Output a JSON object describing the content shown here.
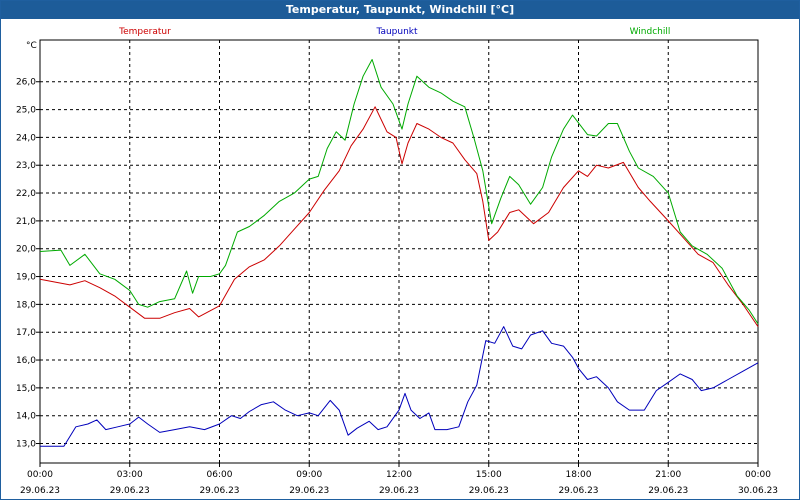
{
  "window": {
    "title": "Temperatur, Taupunkt, Windchill [°C]"
  },
  "chart_data": {
    "type": "line",
    "title": "Temperatur, Taupunkt, Windchill [°C]",
    "ylabel": "°C",
    "xlabel": "",
    "ylim": [
      12.3,
      27.5
    ],
    "yticks": [
      "13,0",
      "14,0",
      "15,0",
      "16,0",
      "17,0",
      "18,0",
      "19,0",
      "20,0",
      "21,0",
      "22,0",
      "23,0",
      "24,0",
      "25,0",
      "26,0"
    ],
    "xlim": [
      0,
      24
    ],
    "xticks": [
      {
        "time": "00:00",
        "date": "29.06.23"
      },
      {
        "time": "03:00",
        "date": "29.06.23"
      },
      {
        "time": "06:00",
        "date": "29.06.23"
      },
      {
        "time": "09:00",
        "date": "29.06.23"
      },
      {
        "time": "12:00",
        "date": "29.06.23"
      },
      {
        "time": "15:00",
        "date": "29.06.23"
      },
      {
        "time": "18:00",
        "date": "29.06.23"
      },
      {
        "time": "21:00",
        "date": "29.06.23"
      },
      {
        "time": "00:00",
        "date": "30.06.23"
      }
    ],
    "grid": true,
    "legend_position": "top",
    "series": [
      {
        "name": "Temperatur",
        "color": "#cc0000",
        "points": [
          [
            0,
            18.9
          ],
          [
            1,
            18.7
          ],
          [
            1.5,
            18.85
          ],
          [
            2,
            18.6
          ],
          [
            2.5,
            18.3
          ],
          [
            3,
            17.9
          ],
          [
            3.5,
            17.5
          ],
          [
            4,
            17.5
          ],
          [
            4.5,
            17.7
          ],
          [
            5,
            17.85
          ],
          [
            5.3,
            17.55
          ],
          [
            6,
            17.95
          ],
          [
            6.5,
            18.9
          ],
          [
            7,
            19.35
          ],
          [
            7.5,
            19.6
          ],
          [
            8,
            20.1
          ],
          [
            8.5,
            20.7
          ],
          [
            9,
            21.3
          ],
          [
            9.5,
            22.1
          ],
          [
            10,
            22.8
          ],
          [
            10.4,
            23.7
          ],
          [
            10.8,
            24.3
          ],
          [
            11.2,
            25.1
          ],
          [
            11.6,
            24.2
          ],
          [
            11.9,
            24.0
          ],
          [
            12.1,
            23.05
          ],
          [
            12.3,
            23.8
          ],
          [
            12.6,
            24.5
          ],
          [
            13,
            24.3
          ],
          [
            13.4,
            24.0
          ],
          [
            13.8,
            23.8
          ],
          [
            14.2,
            23.2
          ],
          [
            14.6,
            22.7
          ],
          [
            14.8,
            21.7
          ],
          [
            15,
            20.3
          ],
          [
            15.3,
            20.6
          ],
          [
            15.7,
            21.3
          ],
          [
            16,
            21.4
          ],
          [
            16.5,
            20.9
          ],
          [
            17,
            21.3
          ],
          [
            17.5,
            22.2
          ],
          [
            18,
            22.8
          ],
          [
            18.3,
            22.6
          ],
          [
            18.6,
            23.0
          ],
          [
            19,
            22.9
          ],
          [
            19.5,
            23.1
          ],
          [
            20,
            22.2
          ],
          [
            20.4,
            21.7
          ],
          [
            21,
            21.0
          ],
          [
            21.5,
            20.4
          ],
          [
            22,
            19.8
          ],
          [
            22.5,
            19.5
          ],
          [
            23,
            18.7
          ],
          [
            23.5,
            18.0
          ],
          [
            24,
            17.2
          ]
        ]
      },
      {
        "name": "Taupunkt",
        "color": "#0000bb",
        "points": [
          [
            0,
            12.9
          ],
          [
            0.8,
            12.9
          ],
          [
            1.2,
            13.6
          ],
          [
            1.6,
            13.7
          ],
          [
            1.9,
            13.85
          ],
          [
            2.2,
            13.5
          ],
          [
            2.6,
            13.6
          ],
          [
            3,
            13.7
          ],
          [
            3.3,
            13.95
          ],
          [
            3.6,
            13.7
          ],
          [
            4,
            13.4
          ],
          [
            4.5,
            13.5
          ],
          [
            5,
            13.6
          ],
          [
            5.5,
            13.5
          ],
          [
            6,
            13.7
          ],
          [
            6.4,
            14.0
          ],
          [
            6.7,
            13.9
          ],
          [
            7,
            14.15
          ],
          [
            7.4,
            14.4
          ],
          [
            7.8,
            14.5
          ],
          [
            8.2,
            14.2
          ],
          [
            8.6,
            14.0
          ],
          [
            9,
            14.1
          ],
          [
            9.3,
            14.0
          ],
          [
            9.7,
            14.55
          ],
          [
            10,
            14.2
          ],
          [
            10.3,
            13.3
          ],
          [
            10.6,
            13.55
          ],
          [
            11,
            13.8
          ],
          [
            11.3,
            13.5
          ],
          [
            11.6,
            13.6
          ],
          [
            12,
            14.2
          ],
          [
            12.2,
            14.8
          ],
          [
            12.4,
            14.2
          ],
          [
            12.7,
            13.9
          ],
          [
            13,
            14.1
          ],
          [
            13.2,
            13.5
          ],
          [
            13.6,
            13.5
          ],
          [
            14,
            13.6
          ],
          [
            14.3,
            14.5
          ],
          [
            14.6,
            15.1
          ],
          [
            14.9,
            16.7
          ],
          [
            15.2,
            16.6
          ],
          [
            15.5,
            17.2
          ],
          [
            15.8,
            16.5
          ],
          [
            16.1,
            16.4
          ],
          [
            16.4,
            16.9
          ],
          [
            16.8,
            17.05
          ],
          [
            17.1,
            16.6
          ],
          [
            17.5,
            16.5
          ],
          [
            17.8,
            16.1
          ],
          [
            18,
            15.7
          ],
          [
            18.3,
            15.3
          ],
          [
            18.6,
            15.4
          ],
          [
            19,
            15.0
          ],
          [
            19.3,
            14.5
          ],
          [
            19.7,
            14.2
          ],
          [
            20.2,
            14.2
          ],
          [
            20.6,
            14.9
          ],
          [
            21,
            15.2
          ],
          [
            21.4,
            15.5
          ],
          [
            21.8,
            15.3
          ],
          [
            22.1,
            14.9
          ],
          [
            22.5,
            15.0
          ],
          [
            23,
            15.3
          ],
          [
            23.5,
            15.6
          ],
          [
            24,
            15.9
          ]
        ]
      },
      {
        "name": "Windchill",
        "color": "#00aa00",
        "points": [
          [
            0,
            19.9
          ],
          [
            0.7,
            19.95
          ],
          [
            1,
            19.4
          ],
          [
            1.5,
            19.8
          ],
          [
            2,
            19.1
          ],
          [
            2.5,
            18.9
          ],
          [
            3,
            18.5
          ],
          [
            3.3,
            18.0
          ],
          [
            3.6,
            17.9
          ],
          [
            4,
            18.1
          ],
          [
            4.5,
            18.2
          ],
          [
            4.9,
            19.2
          ],
          [
            5.1,
            18.4
          ],
          [
            5.3,
            19.0
          ],
          [
            5.7,
            19.0
          ],
          [
            6,
            19.1
          ],
          [
            6.2,
            19.4
          ],
          [
            6.6,
            20.6
          ],
          [
            7,
            20.8
          ],
          [
            7.5,
            21.2
          ],
          [
            8,
            21.7
          ],
          [
            8.5,
            22.0
          ],
          [
            9,
            22.5
          ],
          [
            9.3,
            22.6
          ],
          [
            9.6,
            23.6
          ],
          [
            9.9,
            24.2
          ],
          [
            10.2,
            23.9
          ],
          [
            10.5,
            25.2
          ],
          [
            10.8,
            26.2
          ],
          [
            11.1,
            26.8
          ],
          [
            11.4,
            25.8
          ],
          [
            11.8,
            25.2
          ],
          [
            12.1,
            24.3
          ],
          [
            12.3,
            25.2
          ],
          [
            12.6,
            26.2
          ],
          [
            13,
            25.8
          ],
          [
            13.4,
            25.6
          ],
          [
            13.8,
            25.3
          ],
          [
            14.2,
            25.1
          ],
          [
            14.5,
            24.0
          ],
          [
            14.8,
            22.8
          ],
          [
            15.1,
            20.9
          ],
          [
            15.4,
            21.8
          ],
          [
            15.7,
            22.6
          ],
          [
            16,
            22.3
          ],
          [
            16.4,
            21.6
          ],
          [
            16.8,
            22.2
          ],
          [
            17.1,
            23.3
          ],
          [
            17.5,
            24.3
          ],
          [
            17.8,
            24.8
          ],
          [
            18.3,
            24.1
          ],
          [
            18.6,
            24.05
          ],
          [
            19,
            24.5
          ],
          [
            19.3,
            24.5
          ],
          [
            19.7,
            23.5
          ],
          [
            20,
            22.9
          ],
          [
            20.5,
            22.6
          ],
          [
            21,
            22.0
          ],
          [
            21.4,
            20.6
          ],
          [
            21.8,
            20.1
          ],
          [
            22.3,
            19.8
          ],
          [
            22.8,
            19.3
          ],
          [
            23.3,
            18.3
          ],
          [
            23.7,
            17.8
          ],
          [
            24,
            17.3
          ]
        ]
      }
    ]
  }
}
